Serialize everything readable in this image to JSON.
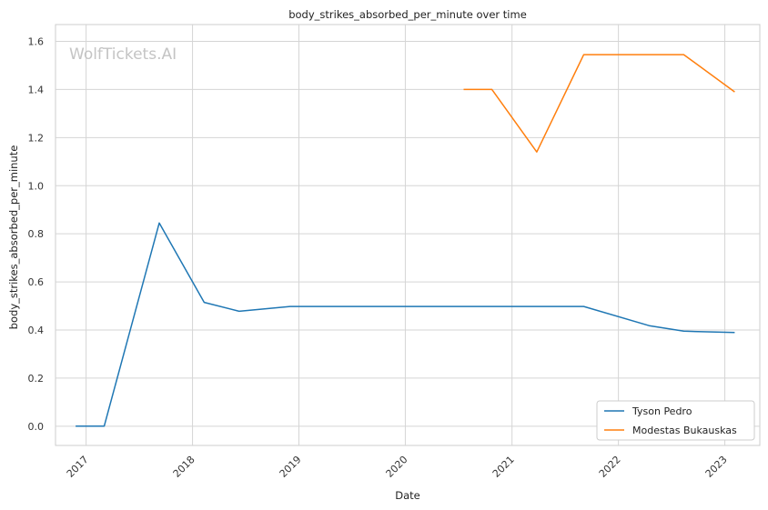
{
  "watermark": "WolfTickets.AI",
  "chart_data": {
    "type": "line",
    "title": "body_strikes_absorbed_per_minute over time",
    "xlabel": "Date",
    "ylabel": "body_strikes_absorbed_per_minute",
    "ylim": [
      -0.08,
      1.67
    ],
    "yticks": [
      0.0,
      0.2,
      0.4,
      0.6,
      0.8,
      1.0,
      1.2,
      1.4,
      1.6
    ],
    "xticks": [
      "2017",
      "2018",
      "2019",
      "2020",
      "2021",
      "2022",
      "2023"
    ],
    "xlim": [
      "2016-09-18",
      "2023-05-01"
    ],
    "grid": true,
    "legend_position": "lower right",
    "series": [
      {
        "name": "Tyson Pedro",
        "color": "#1f77b4",
        "points": [
          {
            "x": "2016-11-26",
            "y": 0.0
          },
          {
            "x": "2017-03-04",
            "y": 0.0
          },
          {
            "x": "2017-09-09",
            "y": 0.845
          },
          {
            "x": "2018-02-10",
            "y": 0.515
          },
          {
            "x": "2018-06-10",
            "y": 0.478
          },
          {
            "x": "2018-12-02",
            "y": 0.498
          },
          {
            "x": "2021-09-04",
            "y": 0.498
          },
          {
            "x": "2022-04-16",
            "y": 0.418
          },
          {
            "x": "2022-08-13",
            "y": 0.395
          },
          {
            "x": "2023-02-04",
            "y": 0.39
          }
        ]
      },
      {
        "name": "Modestas Bukauskas",
        "color": "#ff7f0e",
        "points": [
          {
            "x": "2020-07-19",
            "y": 1.4
          },
          {
            "x": "2020-10-24",
            "y": 1.4
          },
          {
            "x": "2021-03-27",
            "y": 1.14
          },
          {
            "x": "2021-09-04",
            "y": 1.545
          },
          {
            "x": "2022-08-13",
            "y": 1.545
          },
          {
            "x": "2023-02-04",
            "y": 1.39
          }
        ]
      }
    ]
  }
}
